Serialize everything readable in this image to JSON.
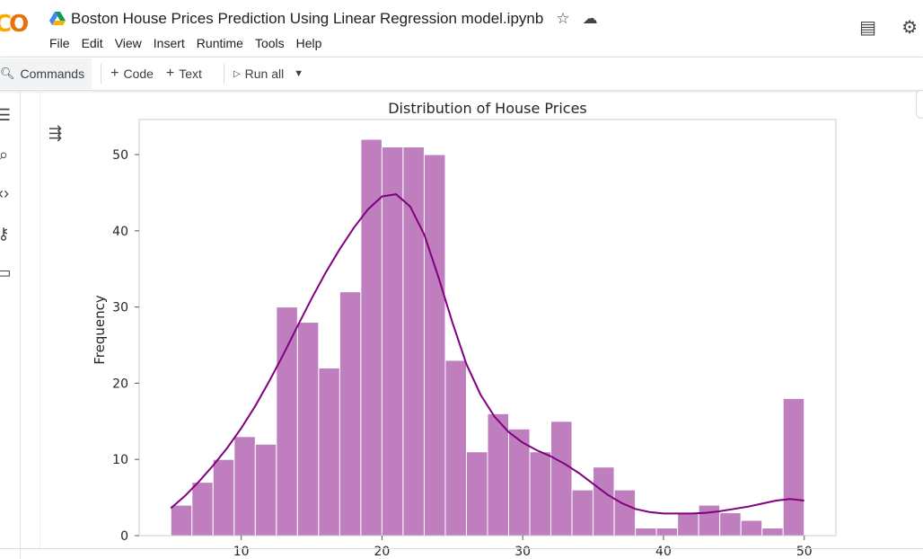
{
  "app": {
    "logo_text_1": "C",
    "logo_text_2": "O",
    "notebook_title": "Boston House Prices Prediction Using Linear Regression model.ipynb"
  },
  "menu": [
    "File",
    "Edit",
    "View",
    "Insert",
    "Runtime",
    "Tools",
    "Help"
  ],
  "toolbar": {
    "commands_label": "Commands",
    "code_label": "Code",
    "text_label": "Text",
    "run_all_label": "Run all"
  },
  "colors": {
    "bar_fill": "#bf7fbf",
    "kde_line": "#800080",
    "axes": "#cccccc",
    "logo_yellow": "#f9ab00",
    "logo_orange": "#e8710a"
  },
  "icons": [
    "drive-icon",
    "star-icon",
    "cloud-icon",
    "comment-icon",
    "gear-icon",
    "search-icon",
    "menu-icon",
    "find-icon",
    "code-icon",
    "key-icon",
    "folder-icon",
    "output-toggle-icon",
    "play-icon",
    "chevron-down-icon",
    "plus-icon"
  ],
  "chart_data": {
    "type": "bar",
    "title": "Distribution of House Prices",
    "ylabel": "Frequency",
    "xlabel": "",
    "bin_start": 5.0,
    "bin_width": 1.5,
    "values": [
      4,
      7,
      10,
      13,
      12,
      30,
      28,
      22,
      32,
      52,
      51,
      51,
      50,
      23,
      11,
      16,
      14,
      11,
      15,
      6,
      9,
      6,
      1,
      1,
      3,
      4,
      3,
      2,
      1,
      18
    ],
    "ylim": [
      0,
      54.6
    ],
    "xlim": [
      2.75,
      52.25
    ],
    "yticks": [
      0,
      10,
      20,
      30,
      40,
      50
    ],
    "xticks": [
      10,
      20,
      30,
      40,
      50
    ],
    "kde": {
      "x": [
        5,
        6,
        7,
        8,
        9,
        10,
        11,
        12,
        13,
        14,
        15,
        16,
        17,
        18,
        19,
        20,
        21,
        22,
        23,
        24,
        25,
        26,
        27,
        28,
        29,
        30,
        31,
        32,
        33,
        34,
        35,
        36,
        37,
        38,
        39,
        40,
        41,
        42,
        43,
        44,
        45,
        46,
        47,
        48,
        49,
        50
      ],
      "y": [
        3.6,
        5.2,
        7.1,
        9.2,
        11.5,
        14.1,
        17.0,
        20.3,
        23.8,
        27.5,
        31.1,
        34.5,
        37.6,
        40.4,
        42.8,
        44.5,
        44.8,
        43.2,
        39.5,
        34.0,
        28.0,
        22.5,
        18.5,
        15.6,
        13.6,
        12.2,
        11.2,
        10.4,
        9.4,
        8.2,
        6.8,
        5.4,
        4.3,
        3.5,
        3.1,
        2.9,
        2.9,
        2.9,
        3.0,
        3.2,
        3.5,
        3.8,
        4.2,
        4.6,
        4.8,
        4.6
      ]
    }
  }
}
